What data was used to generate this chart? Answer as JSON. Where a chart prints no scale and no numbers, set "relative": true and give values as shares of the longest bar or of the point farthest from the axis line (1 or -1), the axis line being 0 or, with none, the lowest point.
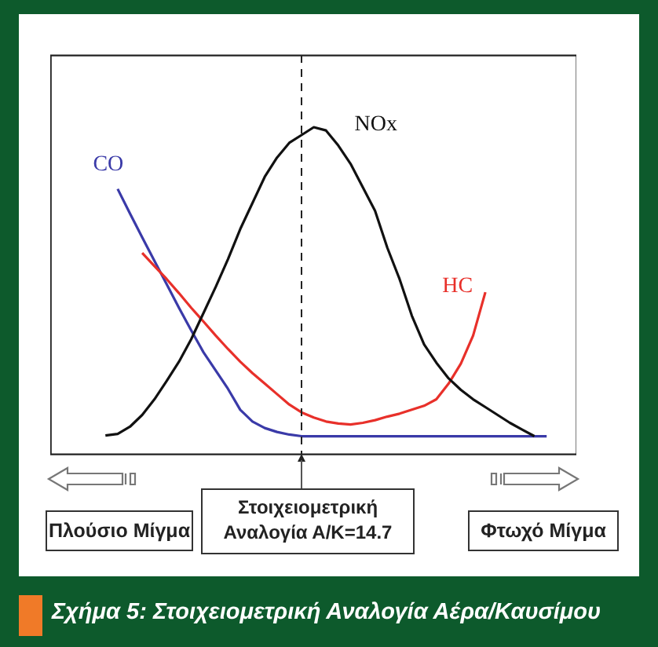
{
  "chart_data": {
    "type": "line",
    "relative": true,
    "title": "Σχήμα 5: Στοιχειομετρική Αναλογία Αέρα/Καυσίμου",
    "categories": [
      null,
      null,
      null,
      null,
      null,
      null,
      null,
      null,
      null,
      null,
      null,
      null,
      null,
      null,
      null,
      null,
      null,
      null,
      null,
      null,
      null,
      null,
      null,
      null,
      null,
      null,
      null,
      null,
      null,
      null,
      null,
      null,
      null,
      null,
      null,
      null,
      null,
      null,
      null,
      null,
      null
    ],
    "series": [
      {
        "name": "CO",
        "color": "#3a3aa8",
        "values": [
          null,
          null,
          null,
          null,
          null,
          0.811,
          0.736,
          0.663,
          0.591,
          0.519,
          0.447,
          0.378,
          0.311,
          0.255,
          0.199,
          0.135,
          0.099,
          0.079,
          0.067,
          0.059,
          0.054,
          0.054,
          0.054,
          0.054,
          0.054,
          0.054,
          0.054,
          0.054,
          0.054,
          0.054,
          0.054,
          0.054,
          0.054,
          0.054,
          0.054,
          0.054,
          0.054,
          0.054,
          0.054,
          0.054,
          0.054
        ]
      },
      {
        "name": "HC",
        "color": "#e8302a",
        "values": [
          null,
          null,
          null,
          null,
          null,
          null,
          null,
          0.615,
          0.575,
          0.535,
          0.492,
          0.447,
          0.405,
          0.362,
          0.321,
          0.282,
          0.247,
          0.215,
          0.183,
          0.151,
          0.127,
          0.111,
          0.099,
          0.093,
          0.09,
          0.095,
          0.103,
          0.114,
          0.123,
          0.135,
          0.147,
          0.167,
          0.215,
          0.276,
          0.362,
          0.495,
          null,
          null,
          null,
          null,
          null
        ]
      },
      {
        "name": "NOx",
        "color": "#111111",
        "values": [
          null,
          null,
          null,
          null,
          0.056,
          0.061,
          0.083,
          0.119,
          0.167,
          0.223,
          0.282,
          0.351,
          0.431,
          0.511,
          0.596,
          0.688,
          0.768,
          0.848,
          0.907,
          0.952,
          0.976,
          1,
          0.99,
          0.944,
          0.888,
          0.816,
          0.744,
          0.631,
          0.535,
          0.423,
          0.335,
          0.279,
          0.231,
          0.196,
          0.167,
          0.143,
          0.119,
          0.095,
          0.074,
          0.054,
          null
        ]
      }
    ],
    "annotations": [
      "Πλούσιο Μίγμα",
      "Φτωχό Μίγμα",
      "Στοιχειομετρική Αναλογία Α/Κ=14.7"
    ]
  }
}
